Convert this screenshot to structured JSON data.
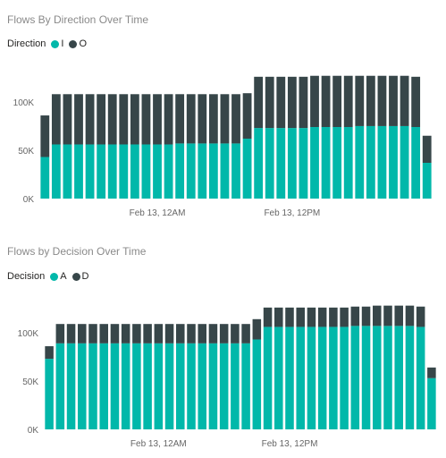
{
  "colors": {
    "teal": "#01B8AA",
    "dark": "#374649",
    "axis_text": "#666666",
    "title_text": "#8a8a8a"
  },
  "chart_data": [
    {
      "type": "bar",
      "stacked": true,
      "title": "Flows By Direction Over Time",
      "legend": {
        "title": "Direction",
        "position": "top-left"
      },
      "series": [
        {
          "name": "I",
          "color": "#01B8AA",
          "values": [
            43000,
            56000,
            56000,
            56000,
            56000,
            56000,
            56000,
            56000,
            56000,
            56000,
            56000,
            56000,
            57000,
            57000,
            57000,
            57000,
            57000,
            57000,
            62000,
            73000,
            73000,
            73000,
            73000,
            73000,
            74000,
            74000,
            74000,
            74000,
            75000,
            75000,
            75000,
            75000,
            75000,
            74000,
            37000
          ]
        },
        {
          "name": "O",
          "color": "#374649",
          "values": [
            43000,
            52000,
            52000,
            52000,
            52000,
            52000,
            52000,
            52000,
            52000,
            52000,
            52000,
            52000,
            51000,
            51000,
            51000,
            51000,
            51000,
            51000,
            47000,
            53000,
            53000,
            53000,
            53000,
            53000,
            53000,
            53000,
            53000,
            53000,
            52000,
            52000,
            52000,
            52000,
            52000,
            52000,
            28000
          ]
        }
      ],
      "y_ticks": [
        {
          "value": 0,
          "label": "0K"
        },
        {
          "value": 50000,
          "label": "50K"
        },
        {
          "value": 100000,
          "label": "100K"
        }
      ],
      "ylim": [
        0,
        130000
      ],
      "x_labels": [
        {
          "index": 10.5,
          "label": "Feb 13, 12AM"
        },
        {
          "index": 22.5,
          "label": "Feb 13, 12PM"
        }
      ],
      "grid": false
    },
    {
      "type": "bar",
      "stacked": true,
      "title": "Flows by Decision Over Time",
      "legend": {
        "title": "Decision",
        "position": "top-left"
      },
      "series": [
        {
          "name": "A",
          "color": "#01B8AA",
          "values": [
            73000,
            89000,
            89000,
            89000,
            89000,
            89000,
            89000,
            89000,
            89000,
            89000,
            89000,
            89000,
            89000,
            89000,
            89000,
            89000,
            89000,
            89000,
            89000,
            93000,
            106000,
            106000,
            106000,
            106000,
            106000,
            106000,
            106000,
            106000,
            107000,
            107000,
            107000,
            107000,
            107000,
            107000,
            106000,
            53000
          ]
        },
        {
          "name": "D",
          "color": "#374649",
          "values": [
            13000,
            20000,
            20000,
            20000,
            20000,
            20000,
            20000,
            20000,
            20000,
            20000,
            20000,
            20000,
            20000,
            20000,
            20000,
            20000,
            20000,
            20000,
            20000,
            21000,
            20000,
            20000,
            20000,
            20000,
            20000,
            20000,
            20000,
            20000,
            20000,
            20000,
            21000,
            21000,
            21000,
            21000,
            21000,
            11000
          ]
        }
      ],
      "y_ticks": [
        {
          "value": 0,
          "label": "0K"
        },
        {
          "value": 50000,
          "label": "50K"
        },
        {
          "value": 100000,
          "label": "100K"
        }
      ],
      "ylim": [
        0,
        130000
      ],
      "x_labels": [
        {
          "index": 10.5,
          "label": "Feb 13, 12AM"
        },
        {
          "index": 22.5,
          "label": "Feb 13, 12PM"
        }
      ],
      "grid": false
    }
  ]
}
